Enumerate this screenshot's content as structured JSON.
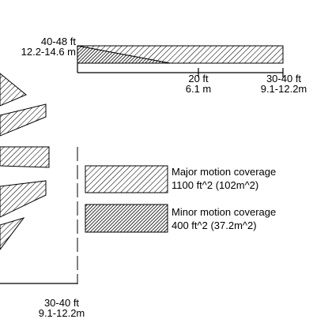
{
  "side_view": {
    "height_label_ft": "40-48 ft",
    "height_label_m": "12.2-14.6 m",
    "mid_label_ft": "20 ft",
    "mid_label_m": "6.1 m",
    "far_label_ft": "30-40 ft",
    "far_label_m": "9.1-12.2m"
  },
  "top_view": {
    "range_label_ft": "30-40 ft",
    "range_label_m": "9.1-12.2m"
  },
  "legend": {
    "major": {
      "title": "Major motion coverage",
      "area": "1100 ft^2 (102m^2)"
    },
    "minor": {
      "title": "Minor motion coverage",
      "area": "400 ft^2 (37.2m^2)"
    }
  }
}
